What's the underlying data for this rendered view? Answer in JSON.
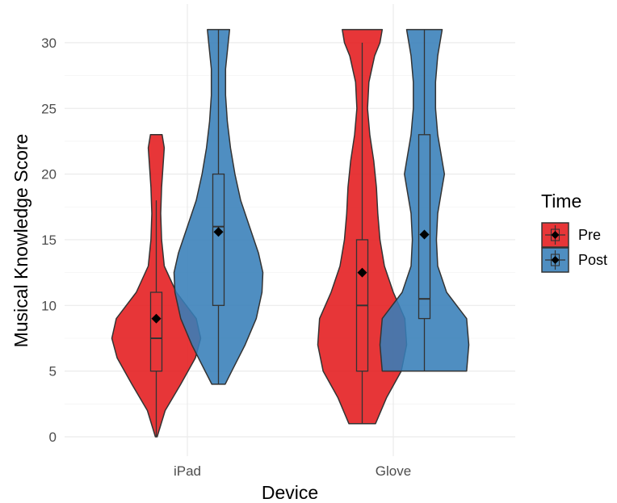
{
  "chart_data": {
    "type": "violin",
    "xlabel": "Device",
    "ylabel": "Musical Knowledge Score",
    "categories": [
      "iPad",
      "Glove"
    ],
    "ylim": [
      0,
      31
    ],
    "yticks": [
      0,
      5,
      10,
      15,
      20,
      25,
      30
    ],
    "grid": true,
    "legend": {
      "title": "Time",
      "position": "right"
    },
    "series": [
      {
        "name": "Pre",
        "color": "#e41a1c",
        "groups": [
          {
            "category": "iPad",
            "density": [
              [
                0,
                0.02
              ],
              [
                2,
                0.2
              ],
              [
                4,
                0.55
              ],
              [
                6,
                0.88
              ],
              [
                7.5,
                1.0
              ],
              [
                9,
                0.9
              ],
              [
                11,
                0.45
              ],
              [
                13,
                0.18
              ],
              [
                15,
                0.12
              ],
              [
                17,
                0.1
              ],
              [
                19,
                0.12
              ],
              [
                21,
                0.16
              ],
              [
                22,
                0.18
              ],
              [
                23,
                0.13
              ]
            ],
            "box": {
              "min": 0,
              "q1": 5,
              "median": 7.5,
              "q3": 11,
              "max": 18
            },
            "mean": 9
          },
          {
            "category": "Glove",
            "density": [
              [
                1,
                0.3
              ],
              [
                3,
                0.55
              ],
              [
                5,
                0.88
              ],
              [
                7,
                1.0
              ],
              [
                9,
                0.96
              ],
              [
                11,
                0.7
              ],
              [
                13,
                0.5
              ],
              [
                15,
                0.4
              ],
              [
                17,
                0.35
              ],
              [
                19,
                0.32
              ],
              [
                21,
                0.26
              ],
              [
                23,
                0.17
              ],
              [
                25,
                0.12
              ],
              [
                27,
                0.15
              ],
              [
                29,
                0.28
              ],
              [
                30,
                0.4
              ],
              [
                31,
                0.45
              ]
            ],
            "box": {
              "min": 1,
              "q1": 5,
              "median": 10,
              "q3": 15,
              "max": 30
            },
            "mean": 12.5
          }
        ]
      },
      {
        "name": "Post",
        "color": "#377eb8",
        "groups": [
          {
            "category": "iPad",
            "density": [
              [
                4,
                0.15
              ],
              [
                5,
                0.3
              ],
              [
                7,
                0.6
              ],
              [
                9,
                0.85
              ],
              [
                11,
                0.98
              ],
              [
                12.5,
                1.0
              ],
              [
                14,
                0.9
              ],
              [
                16,
                0.7
              ],
              [
                18,
                0.5
              ],
              [
                20,
                0.37
              ],
              [
                22,
                0.27
              ],
              [
                24,
                0.2
              ],
              [
                26,
                0.16
              ],
              [
                28,
                0.16
              ],
              [
                30,
                0.22
              ],
              [
                31,
                0.25
              ]
            ],
            "box": {
              "min": 4,
              "q1": 10,
              "median": 16,
              "q3": 20,
              "max": 31
            },
            "mean": 15.6
          },
          {
            "category": "Glove",
            "density": [
              [
                5,
                0.95
              ],
              [
                7,
                1.0
              ],
              [
                9,
                0.95
              ],
              [
                11,
                0.5
              ],
              [
                13,
                0.3
              ],
              [
                15,
                0.27
              ],
              [
                17,
                0.3
              ],
              [
                19,
                0.4
              ],
              [
                20,
                0.45
              ],
              [
                21,
                0.4
              ],
              [
                23,
                0.3
              ],
              [
                25,
                0.25
              ],
              [
                27,
                0.25
              ],
              [
                29,
                0.3
              ],
              [
                31,
                0.4
              ]
            ],
            "box": {
              "min": 5,
              "q1": 9,
              "median": 10.5,
              "q3": 23,
              "max": 31
            },
            "mean": 15.4
          }
        ]
      }
    ]
  }
}
